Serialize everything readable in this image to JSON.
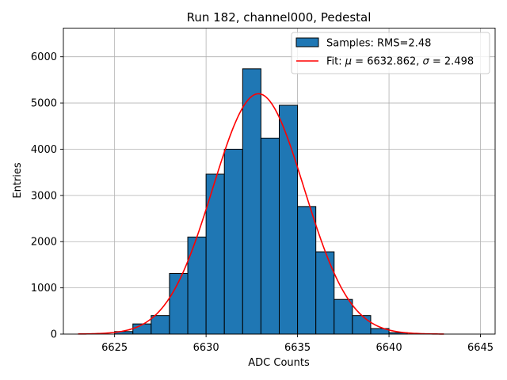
{
  "chart_data": {
    "type": "bar",
    "title": "Run 182, channel000, Pedestal",
    "xlabel": "ADC Counts",
    "ylabel": "Entries",
    "xlim": [
      6622.2,
      6645.8
    ],
    "ylim": [
      0,
      6620
    ],
    "xticks": [
      6625,
      6630,
      6635,
      6640,
      6645
    ],
    "yticks": [
      0,
      1000,
      2000,
      3000,
      4000,
      5000,
      6000
    ],
    "grid": true,
    "legend_position": "top-right",
    "bar_color": "#1f77b4",
    "bar_edge_color": "#000000",
    "fit_color": "#ff0000",
    "histogram": {
      "name": "Samples: RMS=2.48",
      "bins": [
        {
          "x0": 6625,
          "x1": 6626,
          "count": 55
        },
        {
          "x0": 6626,
          "x1": 6627,
          "count": 220
        },
        {
          "x0": 6627,
          "x1": 6628,
          "count": 400
        },
        {
          "x0": 6628,
          "x1": 6629,
          "count": 1310
        },
        {
          "x0": 6629,
          "x1": 6630,
          "count": 2100
        },
        {
          "x0": 6630,
          "x1": 6631,
          "count": 3460
        },
        {
          "x0": 6631,
          "x1": 6632,
          "count": 4000
        },
        {
          "x0": 6632,
          "x1": 6633,
          "count": 5740
        },
        {
          "x0": 6633,
          "x1": 6634,
          "count": 4240
        },
        {
          "x0": 6634,
          "x1": 6635,
          "count": 4950
        },
        {
          "x0": 6635,
          "x1": 6636,
          "count": 2760
        },
        {
          "x0": 6636,
          "x1": 6637,
          "count": 1780
        },
        {
          "x0": 6637,
          "x1": 6638,
          "count": 750
        },
        {
          "x0": 6638,
          "x1": 6639,
          "count": 400
        },
        {
          "x0": 6639,
          "x1": 6640,
          "count": 120
        },
        {
          "x0": 6640,
          "x1": 6641,
          "count": 30
        }
      ]
    },
    "fit": {
      "name_prefix": "Fit: ",
      "mu_symbol": "μ",
      "mu_text": " = 6632.862, ",
      "sigma_symbol": "σ",
      "sigma_text": " = 2.498",
      "mu": 6632.862,
      "sigma": 2.498,
      "amplitude": 5200,
      "x_range": [
        6623,
        6643
      ]
    }
  }
}
